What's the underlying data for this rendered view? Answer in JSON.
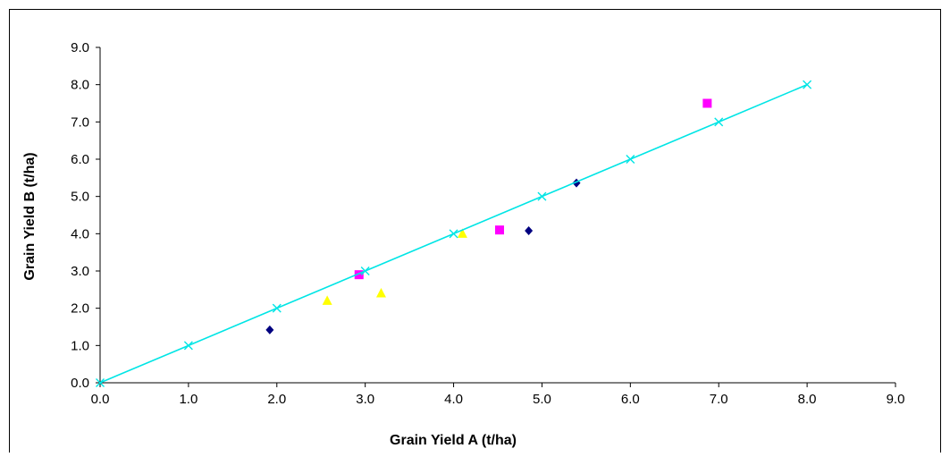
{
  "chart_data": {
    "type": "scatter",
    "title": "",
    "xlabel": "Grain Yield A (t/ha)",
    "ylabel": "Grain Yield B (t/ha)",
    "xlim": [
      0,
      9
    ],
    "ylim": [
      0,
      9
    ],
    "x_ticks": [
      "0.0",
      "1.0",
      "2.0",
      "3.0",
      "4.0",
      "5.0",
      "6.0",
      "7.0",
      "8.0",
      "9.0"
    ],
    "y_ticks": [
      "0.0",
      "1.0",
      "2.0",
      "3.0",
      "4.0",
      "5.0",
      "6.0",
      "7.0",
      "8.0",
      "9.0"
    ],
    "grid": false,
    "legend": "none",
    "series": [
      {
        "marker": "diamond",
        "color": "#000080",
        "points": [
          [
            1.92,
            1.42
          ],
          [
            4.85,
            4.08
          ],
          [
            5.39,
            5.36
          ]
        ]
      },
      {
        "marker": "square",
        "color": "#ff00ff",
        "points": [
          [
            2.93,
            2.9
          ],
          [
            4.52,
            4.1
          ],
          [
            6.87,
            7.5
          ]
        ]
      },
      {
        "marker": "triangle",
        "color": "#ffff00",
        "points": [
          [
            2.57,
            2.2
          ],
          [
            3.18,
            2.4
          ],
          [
            4.1,
            4.0
          ]
        ]
      },
      {
        "marker": "cross",
        "color": "#00e5e5",
        "line": true,
        "points": [
          [
            0,
            0
          ],
          [
            1,
            1
          ],
          [
            2,
            2
          ],
          [
            3,
            3
          ],
          [
            4,
            4
          ],
          [
            5,
            5
          ],
          [
            6,
            6
          ],
          [
            7,
            7
          ],
          [
            8,
            8
          ]
        ]
      }
    ]
  }
}
